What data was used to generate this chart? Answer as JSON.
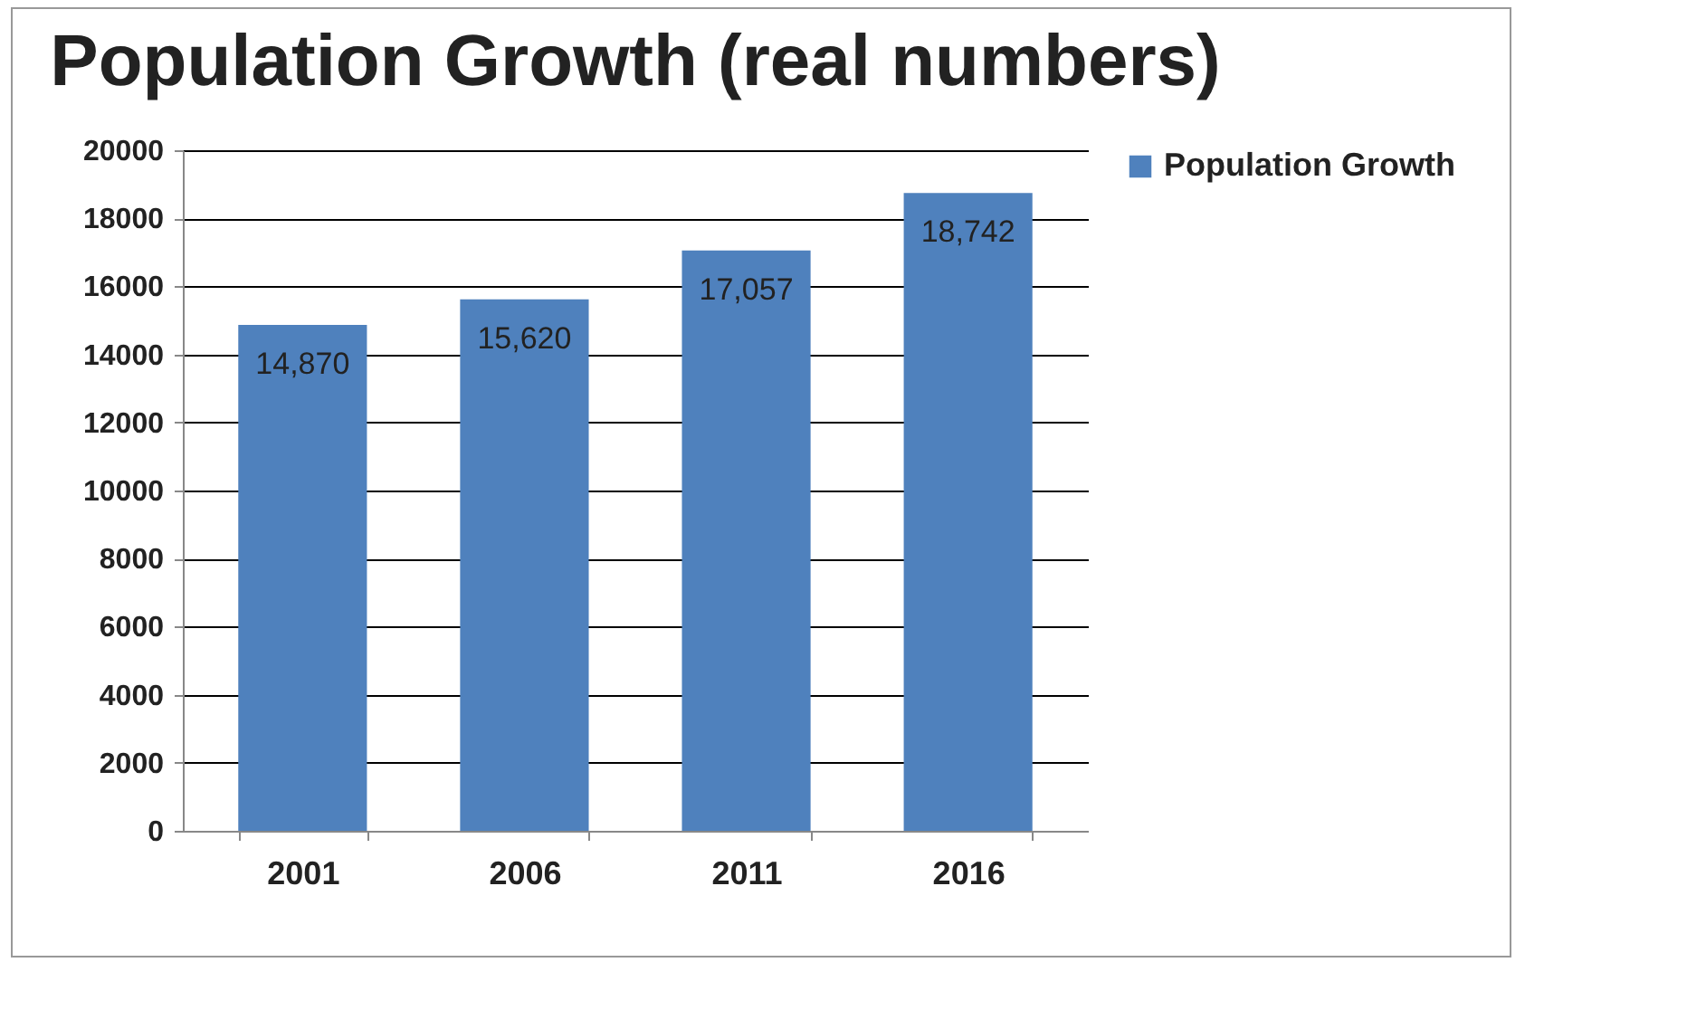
{
  "chart_data": {
    "type": "bar",
    "title": "Population Growth (real numbers)",
    "categories": [
      "2001",
      "2006",
      "2011",
      "2016"
    ],
    "series": [
      {
        "name": "Population Growth",
        "color": "#4f81bd",
        "values": [
          14870,
          15620,
          17057,
          18742
        ]
      }
    ],
    "value_labels": [
      "14,870",
      "15,620",
      "17,057",
      "18,742"
    ],
    "ylim": [
      0,
      20000
    ],
    "yticks": [
      0,
      2000,
      4000,
      6000,
      8000,
      10000,
      12000,
      14000,
      16000,
      18000,
      20000
    ],
    "grid": "y",
    "legend": "right"
  }
}
